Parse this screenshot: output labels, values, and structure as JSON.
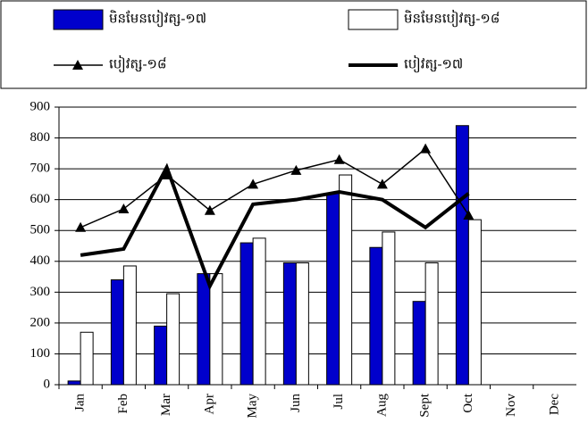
{
  "chart_data": {
    "type": "bar",
    "categories": [
      "Jan",
      "Feb",
      "Mar",
      "Apr",
      "May",
      "Jun",
      "Jul",
      "Aug",
      "Sept",
      "Oct",
      "Nov",
      "Dec"
    ],
    "series": [
      {
        "name": "មិនមែនបៀវត្ស-១៧",
        "type": "bar",
        "color": "#0000cc",
        "values": [
          12,
          340,
          190,
          360,
          460,
          395,
          620,
          445,
          270,
          840,
          null,
          null
        ]
      },
      {
        "name": "មិនមែនបៀវត្ស-១៨",
        "type": "bar",
        "color": "#ffffff",
        "values": [
          170,
          385,
          295,
          360,
          475,
          395,
          680,
          495,
          395,
          535,
          null,
          null
        ]
      },
      {
        "name": "បៀវត្ស-១៨",
        "type": "line",
        "marker": "triangle",
        "color": "#000000",
        "values": [
          510,
          570,
          680,
          565,
          650,
          695,
          730,
          650,
          765,
          550,
          null,
          null
        ]
      },
      {
        "name": "បៀវត្ស-១៧",
        "type": "line",
        "marker": "none",
        "color": "#000000",
        "values": [
          420,
          440,
          705,
          320,
          585,
          600,
          625,
          600,
          510,
          620,
          null,
          null
        ]
      }
    ],
    "ylim": [
      0,
      900
    ],
    "yticks": [
      0,
      100,
      200,
      300,
      400,
      500,
      600,
      700,
      800,
      900
    ],
    "grid": true,
    "legend": "top"
  }
}
